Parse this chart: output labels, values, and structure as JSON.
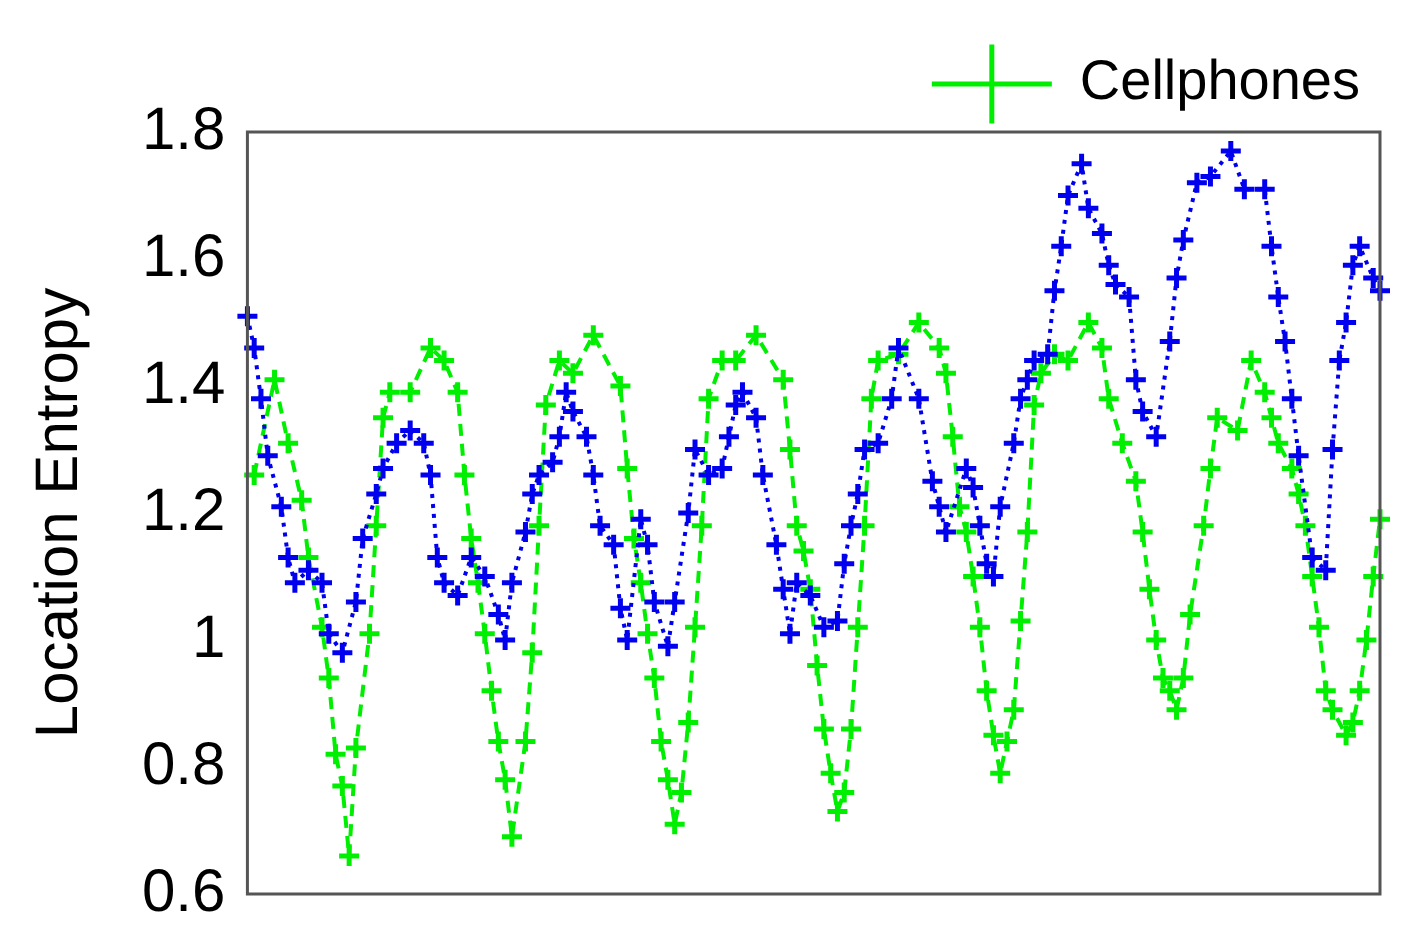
{
  "chart_data": {
    "type": "line",
    "ylabel": "Location Entropy",
    "ylim": [
      0.6,
      1.8
    ],
    "yticks": [
      0.6,
      0.8,
      1,
      1.2,
      1.4,
      1.6,
      1.8
    ],
    "tick_labels": "y",
    "grid": false,
    "legend": "top",
    "categories": [
      null,
      null,
      null,
      null,
      null,
      null,
      null,
      null,
      null,
      null,
      null,
      null,
      null,
      null,
      null,
      null,
      null,
      null,
      null,
      null,
      null,
      null,
      null,
      null,
      null,
      null,
      null,
      null,
      null,
      null,
      null,
      null,
      null,
      null,
      null,
      null,
      null,
      null,
      null,
      null,
      null,
      null,
      null,
      null,
      null,
      null,
      null,
      null,
      null,
      null,
      null,
      null,
      null,
      null,
      null,
      null,
      null,
      null,
      null,
      null,
      null,
      null,
      null,
      null,
      null,
      null,
      null,
      null,
      null,
      null,
      null,
      null,
      null,
      null,
      null,
      null,
      null,
      null,
      null,
      null,
      null,
      null,
      null,
      null,
      null,
      null,
      null,
      null,
      null,
      null,
      null,
      null,
      null,
      null,
      null,
      null,
      null,
      null,
      null,
      null,
      null,
      null,
      null,
      null,
      null,
      null,
      null,
      null,
      null,
      null,
      null,
      null,
      null,
      null,
      null,
      null,
      null,
      null,
      null,
      null,
      null,
      null,
      null,
      null,
      null,
      null,
      null,
      null,
      null,
      null,
      null,
      null,
      null,
      null,
      null,
      null,
      null,
      null,
      null,
      null,
      null,
      null,
      null,
      null,
      null,
      null,
      null,
      null,
      null,
      null,
      null,
      null,
      null,
      null,
      null,
      null,
      null,
      null,
      null,
      null,
      null,
      null,
      null,
      null,
      null,
      null,
      null,
      null
    ],
    "series": [
      {
        "color": "#0000ee",
        "marker": "cross",
        "line_style": "dotted",
        "values": [
          1.51,
          1.46,
          1.38,
          1.29,
          null,
          1.21,
          1.13,
          1.09,
          null,
          1.11,
          null,
          1.09,
          1.01,
          null,
          0.98,
          null,
          1.06,
          1.16,
          null,
          1.23,
          1.27,
          null,
          1.31,
          null,
          1.33,
          null,
          1.31,
          1.26,
          1.13,
          1.09,
          null,
          1.07,
          null,
          1.13,
          null,
          1.1,
          null,
          1.04,
          1.0,
          1.09,
          null,
          1.17,
          1.23,
          1.26,
          null,
          1.28,
          1.32,
          1.39,
          1.36,
          null,
          1.32,
          1.26,
          1.18,
          null,
          1.15,
          1.05,
          1.0,
          null,
          1.19,
          1.15,
          1.06,
          null,
          0.99,
          1.06,
          null,
          1.2,
          1.3,
          null,
          1.26,
          null,
          1.27,
          1.32,
          1.37,
          1.39,
          null,
          1.35,
          1.26,
          null,
          1.15,
          1.08,
          1.01,
          1.09,
          null,
          1.07,
          null,
          1.02,
          null,
          1.03,
          1.12,
          1.18,
          1.23,
          1.3,
          null,
          1.31,
          null,
          1.38,
          1.46,
          null,
          null,
          1.38,
          null,
          1.25,
          1.21,
          1.17,
          null,
          null,
          1.27,
          1.24,
          1.18,
          1.12,
          1.1,
          1.21,
          null,
          1.31,
          1.38,
          1.41,
          1.44,
          null,
          1.45,
          1.55,
          1.62,
          1.7,
          null,
          1.75,
          1.68,
          null,
          1.64,
          1.59,
          1.56,
          null,
          1.54,
          1.41,
          1.36,
          null,
          1.32,
          null,
          1.47,
          1.57,
          1.63,
          null,
          1.72,
          null,
          1.73,
          null,
          null,
          1.77,
          null,
          1.71,
          null,
          null,
          1.71,
          1.62,
          1.54,
          1.47,
          1.38,
          1.29,
          null,
          1.13,
          null,
          1.11,
          1.3,
          1.44,
          1.5,
          1.59,
          1.62,
          null,
          1.57,
          1.55
        ]
      },
      {
        "name": "Cellphones",
        "color": "#00ee00",
        "marker": "cross",
        "line_style": "dashed",
        "values": [
          null,
          1.26,
          null,
          null,
          1.41,
          null,
          1.31,
          null,
          1.22,
          1.13,
          null,
          1.02,
          0.94,
          0.82,
          0.77,
          0.66,
          0.83,
          null,
          1.01,
          1.18,
          1.35,
          1.39,
          null,
          null,
          1.39,
          null,
          null,
          1.46,
          null,
          1.44,
          null,
          1.39,
          1.26,
          1.16,
          1.09,
          1.01,
          0.92,
          0.84,
          0.78,
          0.69,
          null,
          0.84,
          0.98,
          1.18,
          1.37,
          null,
          1.44,
          null,
          1.42,
          null,
          null,
          1.48,
          null,
          null,
          null,
          1.4,
          1.27,
          1.16,
          1.09,
          1.01,
          0.94,
          0.84,
          0.78,
          0.71,
          0.76,
          0.87,
          1.02,
          1.18,
          1.38,
          null,
          1.44,
          null,
          1.44,
          null,
          null,
          1.48,
          null,
          null,
          null,
          1.41,
          1.3,
          1.18,
          1.14,
          1.08,
          0.96,
          0.86,
          0.79,
          0.73,
          0.76,
          0.86,
          1.02,
          1.18,
          1.38,
          1.44,
          null,
          null,
          1.45,
          null,
          null,
          1.5,
          null,
          null,
          1.46,
          1.42,
          1.32,
          1.21,
          1.17,
          1.1,
          1.02,
          0.92,
          0.85,
          0.79,
          0.84,
          0.89,
          1.03,
          1.17,
          1.37,
          1.42,
          null,
          1.45,
          null,
          1.44,
          null,
          null,
          1.5,
          null,
          1.46,
          1.38,
          null,
          1.31,
          null,
          1.25,
          1.17,
          1.08,
          1.0,
          0.94,
          0.92,
          0.89,
          0.94,
          1.04,
          null,
          1.18,
          1.27,
          1.35,
          null,
          null,
          1.33,
          null,
          1.44,
          null,
          1.39,
          1.35,
          1.31,
          null,
          1.27,
          1.23,
          1.18,
          1.1,
          1.02,
          0.92,
          0.89,
          null,
          0.85,
          0.87,
          0.92,
          1.0,
          1.1,
          1.19
        ]
      }
    ]
  }
}
